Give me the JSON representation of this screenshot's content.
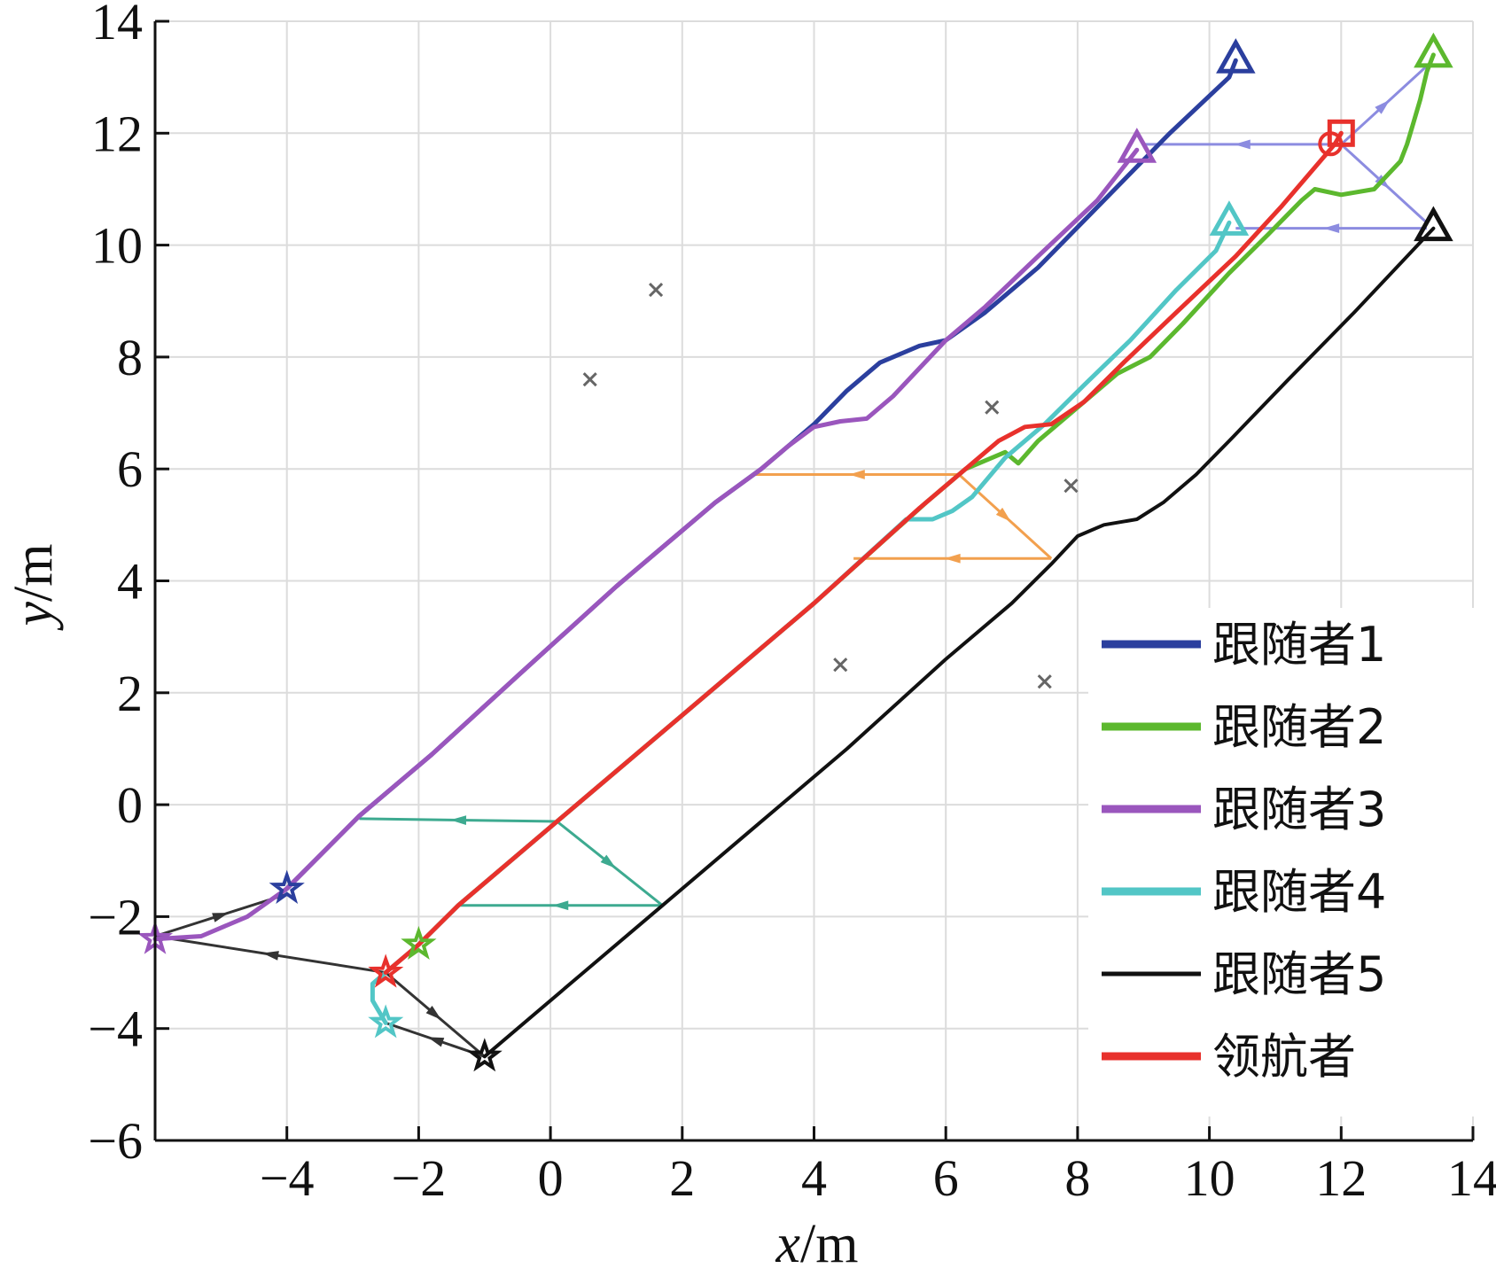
{
  "chart_data": {
    "type": "line",
    "xlabel_var": "x",
    "xlabel_unit": "/m",
    "ylabel_var": "y",
    "ylabel_unit": "/m",
    "xlim": [
      -6,
      14
    ],
    "ylim": [
      -6,
      14
    ],
    "xticks": [
      -4,
      -2,
      0,
      2,
      4,
      6,
      8,
      10,
      12,
      14
    ],
    "yticks": [
      -6,
      -4,
      -2,
      0,
      2,
      4,
      6,
      8,
      10,
      12,
      14
    ],
    "grid": true,
    "legend_position": "bottom-right",
    "series": [
      {
        "name": "跟随者1",
        "color": "#2b3f9e",
        "start_marker": "star",
        "end_marker": "triangle",
        "points": [
          [
            -4.0,
            -1.5
          ],
          [
            -2.9,
            -0.2
          ],
          [
            -1.8,
            0.9
          ],
          [
            -0.5,
            2.3
          ],
          [
            1.0,
            3.9
          ],
          [
            2.5,
            5.4
          ],
          [
            3.2,
            6.0
          ],
          [
            4.0,
            6.8
          ],
          [
            4.5,
            7.4
          ],
          [
            5.0,
            7.9
          ],
          [
            5.6,
            8.2
          ],
          [
            6.0,
            8.3
          ],
          [
            6.6,
            8.8
          ],
          [
            7.4,
            9.6
          ],
          [
            8.4,
            10.8
          ],
          [
            9.4,
            12.0
          ],
          [
            10.3,
            13.0
          ],
          [
            10.4,
            13.3
          ]
        ]
      },
      {
        "name": "跟随者2",
        "color": "#5cb82e",
        "start_marker": "star",
        "end_marker": "triangle",
        "points": [
          [
            -2.0,
            -2.5
          ],
          [
            -1.4,
            -1.8
          ],
          [
            0.1,
            -0.3
          ],
          [
            2.0,
            1.6
          ],
          [
            4.0,
            3.6
          ],
          [
            5.7,
            5.4
          ],
          [
            6.3,
            6.0
          ],
          [
            6.9,
            6.3
          ],
          [
            7.1,
            6.1
          ],
          [
            7.4,
            6.5
          ],
          [
            8.0,
            7.1
          ],
          [
            8.6,
            7.7
          ],
          [
            9.1,
            8.0
          ],
          [
            9.6,
            8.6
          ],
          [
            10.3,
            9.5
          ],
          [
            10.9,
            10.2
          ],
          [
            11.4,
            10.8
          ],
          [
            11.6,
            11.0
          ],
          [
            12.0,
            10.9
          ],
          [
            12.5,
            11.0
          ],
          [
            12.9,
            11.5
          ],
          [
            13.0,
            11.8
          ],
          [
            13.1,
            12.2
          ],
          [
            13.2,
            12.6
          ],
          [
            13.3,
            13.1
          ],
          [
            13.4,
            13.4
          ]
        ]
      },
      {
        "name": "跟随者3",
        "color": "#9a56bd",
        "start_marker": "star",
        "end_marker": "triangle",
        "points": [
          [
            -6.0,
            -2.4
          ],
          [
            -5.3,
            -2.35
          ],
          [
            -4.6,
            -2.0
          ],
          [
            -4.0,
            -1.5
          ],
          [
            -2.9,
            -0.2
          ],
          [
            -1.8,
            0.9
          ],
          [
            -0.5,
            2.3
          ],
          [
            1.0,
            3.9
          ],
          [
            2.5,
            5.4
          ],
          [
            3.2,
            6.0
          ],
          [
            3.6,
            6.4
          ],
          [
            4.0,
            6.75
          ],
          [
            4.4,
            6.85
          ],
          [
            4.8,
            6.9
          ],
          [
            5.2,
            7.3
          ],
          [
            5.6,
            7.8
          ],
          [
            6.0,
            8.3
          ],
          [
            6.6,
            8.9
          ],
          [
            7.4,
            9.8
          ],
          [
            8.3,
            10.8
          ],
          [
            8.9,
            11.7
          ]
        ]
      },
      {
        "name": "跟随者4",
        "color": "#52c6c6",
        "start_marker": "star",
        "end_marker": "triangle",
        "points": [
          [
            -2.5,
            -3.9
          ],
          [
            -2.7,
            -3.5
          ],
          [
            -2.7,
            -3.2
          ],
          [
            -2.5,
            -3.0
          ],
          [
            -2.0,
            -2.5
          ],
          [
            -1.4,
            -1.8
          ],
          [
            0.1,
            -0.3
          ],
          [
            2.0,
            1.6
          ],
          [
            4.0,
            3.6
          ],
          [
            5.4,
            5.1
          ],
          [
            5.8,
            5.1
          ],
          [
            6.1,
            5.25
          ],
          [
            6.4,
            5.5
          ],
          [
            6.9,
            6.2
          ],
          [
            7.5,
            6.8
          ],
          [
            8.1,
            7.5
          ],
          [
            8.8,
            8.3
          ],
          [
            9.5,
            9.2
          ],
          [
            10.1,
            9.9
          ],
          [
            10.3,
            10.4
          ]
        ]
      },
      {
        "name": "跟随者5",
        "color": "#111111",
        "start_marker": "star",
        "end_marker": "triangle",
        "points": [
          [
            -1.0,
            -4.5
          ],
          [
            0.5,
            -3.0
          ],
          [
            1.7,
            -1.8
          ],
          [
            3.0,
            -0.5
          ],
          [
            4.5,
            1.0
          ],
          [
            6.0,
            2.6
          ],
          [
            7.0,
            3.6
          ],
          [
            7.6,
            4.3
          ],
          [
            8.0,
            4.8
          ],
          [
            8.4,
            5.0
          ],
          [
            8.9,
            5.1
          ],
          [
            9.3,
            5.4
          ],
          [
            9.8,
            5.9
          ],
          [
            10.3,
            6.5
          ],
          [
            11.2,
            7.6
          ],
          [
            12.2,
            8.8
          ],
          [
            13.4,
            10.3
          ]
        ]
      },
      {
        "name": "领航者",
        "color": "#e8312c",
        "start_marker": "star",
        "end_marker": "square",
        "points": [
          [
            -2.5,
            -3.0
          ],
          [
            -2.0,
            -2.5
          ],
          [
            -1.4,
            -1.8
          ],
          [
            0.1,
            -0.3
          ],
          [
            2.0,
            1.6
          ],
          [
            4.0,
            3.6
          ],
          [
            5.6,
            5.3
          ],
          [
            6.2,
            5.9
          ],
          [
            6.8,
            6.5
          ],
          [
            7.2,
            6.75
          ],
          [
            7.6,
            6.8
          ],
          [
            8.1,
            7.2
          ],
          [
            8.7,
            7.9
          ],
          [
            9.5,
            8.8
          ],
          [
            10.4,
            9.8
          ],
          [
            11.1,
            10.7
          ],
          [
            11.9,
            11.8
          ],
          [
            12.0,
            12.0
          ]
        ]
      }
    ],
    "formation_links": [
      {
        "color": "#8c8ce0",
        "points": [
          [
            12.0,
            11.8
          ],
          [
            9.0,
            11.8
          ]
        ]
      },
      {
        "color": "#8c8ce0",
        "points": [
          [
            12.0,
            11.8
          ],
          [
            13.3,
            13.2
          ]
        ]
      },
      {
        "color": "#8c8ce0",
        "points": [
          [
            12.0,
            11.8
          ],
          [
            13.3,
            10.4
          ]
        ]
      },
      {
        "color": "#8c8ce0",
        "points": [
          [
            13.3,
            10.3
          ],
          [
            10.4,
            10.3
          ]
        ]
      },
      {
        "color": "#f2a04e",
        "points": [
          [
            6.2,
            5.9
          ],
          [
            3.1,
            5.9
          ]
        ]
      },
      {
        "color": "#f2a04e",
        "points": [
          [
            6.2,
            5.9
          ],
          [
            7.6,
            4.4
          ]
        ]
      },
      {
        "color": "#f2a04e",
        "points": [
          [
            7.6,
            4.4
          ],
          [
            4.6,
            4.4
          ]
        ]
      },
      {
        "color": "#3daa90",
        "points": [
          [
            0.1,
            -0.3
          ],
          [
            -2.9,
            -0.25
          ]
        ]
      },
      {
        "color": "#3daa90",
        "points": [
          [
            0.1,
            -0.3
          ],
          [
            1.7,
            -1.8
          ]
        ]
      },
      {
        "color": "#3daa90",
        "points": [
          [
            1.7,
            -1.8
          ],
          [
            -1.4,
            -1.8
          ]
        ]
      },
      {
        "color": "#333333",
        "points": [
          [
            -2.5,
            -3.0
          ],
          [
            -6.0,
            -2.35
          ]
        ]
      },
      {
        "color": "#333333",
        "points": [
          [
            -6.0,
            -2.35
          ],
          [
            -4.0,
            -1.6
          ]
        ]
      },
      {
        "color": "#333333",
        "points": [
          [
            -2.5,
            -3.0
          ],
          [
            -1.0,
            -4.5
          ]
        ]
      },
      {
        "color": "#333333",
        "points": [
          [
            -1.0,
            -4.5
          ],
          [
            -2.5,
            -3.9
          ]
        ]
      }
    ],
    "obstacles": [
      [
        1.6,
        9.2
      ],
      [
        0.6,
        7.6
      ],
      [
        6.7,
        7.1
      ],
      [
        7.9,
        5.7
      ],
      [
        4.4,
        2.5
      ],
      [
        7.5,
        2.2
      ]
    ]
  }
}
